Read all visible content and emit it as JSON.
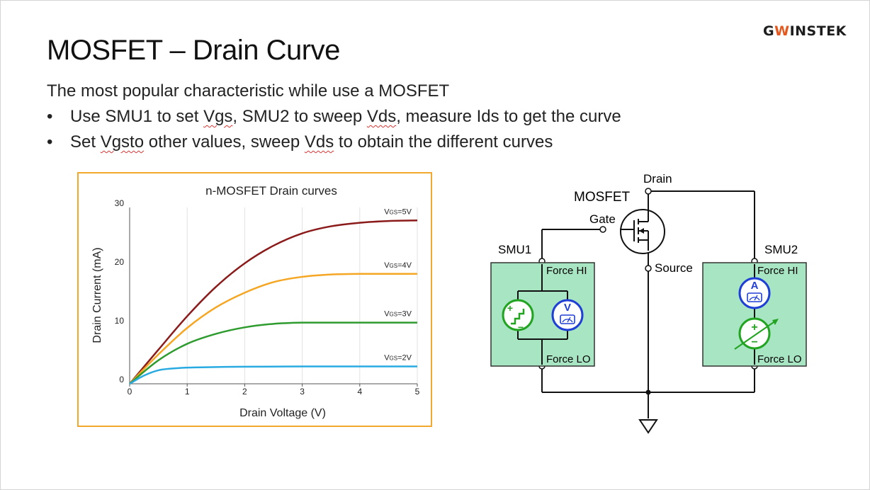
{
  "logo": {
    "part1": "G",
    "part2": "W",
    "part3": "INSTEK"
  },
  "title": "MOSFET – Drain Curve",
  "intro": "The most popular characteristic while use a MOSFET",
  "bullets": [
    {
      "symbol": "•",
      "t1": "Use SMU1 to set ",
      "t2": "Vgs",
      "t3": ", SMU2 to sweep ",
      "t4": "Vds",
      "t5": ", measure Ids to get the curve"
    },
    {
      "symbol": "•",
      "t1": "Set ",
      "t2": "Vgsto",
      "t3": " other values, sweep ",
      "t4": "Vds",
      "t5": " to obtain the different curves"
    }
  ],
  "chart_data": {
    "type": "line",
    "title": "n-MOSFET Drain curves",
    "xlabel": "Drain Voltage (V)",
    "ylabel": "Drain Current (mA)",
    "xlim": [
      0,
      5
    ],
    "ylim": [
      0,
      30
    ],
    "x_ticks": [
      "0",
      "1",
      "2",
      "3",
      "4",
      "5"
    ],
    "y_ticks": [
      "0",
      "10",
      "20",
      "30"
    ],
    "grid": "vertical",
    "series": [
      {
        "name": "VGS=5V",
        "label_main": "V",
        "label_sub": "GS",
        "label_tail": "=5V",
        "color": "#8b1a1a",
        "x": [
          0,
          0.5,
          1,
          1.5,
          2,
          2.5,
          3,
          3.5,
          4,
          4.5,
          5
        ],
        "y": [
          0,
          5.8,
          11.5,
          16.5,
          20.5,
          23.5,
          25.6,
          26.8,
          27.4,
          27.7,
          27.8
        ]
      },
      {
        "name": "VGS=4V",
        "label_main": "V",
        "label_sub": "GS",
        "label_tail": "=4V",
        "color": "#f5a623",
        "x": [
          0,
          0.5,
          1,
          1.5,
          2,
          2.5,
          3,
          3.5,
          4,
          4.5,
          5
        ],
        "y": [
          0,
          5,
          9.5,
          13,
          15.5,
          17.3,
          18.2,
          18.6,
          18.7,
          18.7,
          18.7
        ]
      },
      {
        "name": "VGS=3V",
        "label_main": "V",
        "label_sub": "GS",
        "label_tail": "=3V",
        "color": "#2e9b2e",
        "x": [
          0,
          0.5,
          1,
          1.5,
          2,
          2.5,
          3,
          3.5,
          4,
          4.5,
          5
        ],
        "y": [
          0,
          4,
          6.8,
          8.5,
          9.6,
          10.2,
          10.4,
          10.4,
          10.4,
          10.4,
          10.4
        ]
      },
      {
        "name": "VGS=2V",
        "label_main": "V",
        "label_sub": "GS",
        "label_tail": "=2V",
        "color": "#29abe2",
        "x": [
          0,
          0.25,
          0.5,
          0.75,
          1,
          1.5,
          2,
          3,
          4,
          5
        ],
        "y": [
          0,
          1.4,
          2.3,
          2.6,
          2.75,
          2.85,
          2.9,
          2.95,
          2.95,
          2.95
        ]
      }
    ]
  },
  "circuit": {
    "mosfet_label": "MOSFET",
    "drain_label": "Drain",
    "gate_label": "Gate",
    "source_label": "Source",
    "smu1": {
      "name": "SMU1",
      "force_hi": "Force HI",
      "force_lo": "Force LO",
      "meter_letter": "V"
    },
    "smu2": {
      "name": "SMU2",
      "force_hi": "Force HI",
      "force_lo": "Force LO",
      "meter_letter": "A"
    },
    "source_plus": "+",
    "source_minus": "−",
    "colors": {
      "smu_box": "#a8e6c3",
      "source": "#22a322",
      "meter": "#1f3fd6"
    }
  }
}
